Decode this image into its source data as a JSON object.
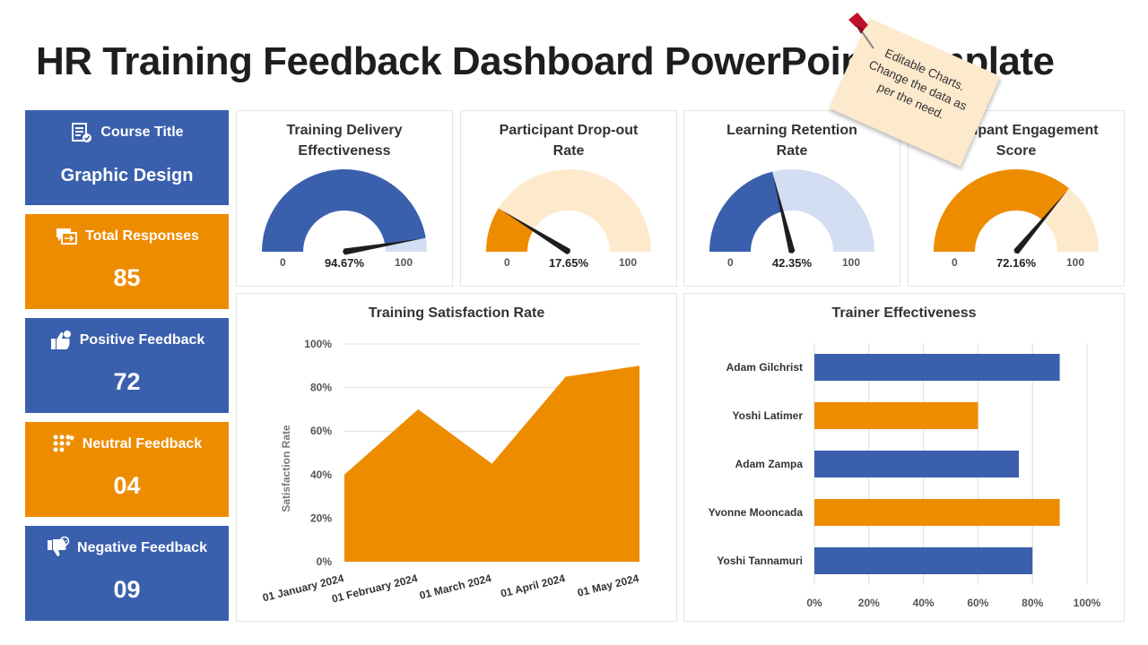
{
  "title": "HR Training Feedback Dashboard PowerPoint Template",
  "note": {
    "line1": "Editable Charts.",
    "line2": "Change the data as",
    "line3": "per the  need."
  },
  "kpis": [
    {
      "label": "Course Title",
      "value": "Graphic Design",
      "color": "#3a5fad",
      "icon": "document-check-icon"
    },
    {
      "label": "Total Responses",
      "value": "85",
      "color": "#ee8c00",
      "icon": "chat-arrow-icon"
    },
    {
      "label": "Positive Feedback",
      "value": "72",
      "color": "#3a5fad",
      "icon": "thumbs-up-icon"
    },
    {
      "label": "Neutral Feedback",
      "value": "04",
      "color": "#ee8c00",
      "icon": "star-dots-icon"
    },
    {
      "label": "Negative Feedback",
      "value": "09",
      "color": "#3a5fad",
      "icon": "thumbs-down-icon"
    }
  ],
  "chart_data": [
    {
      "type": "gauge",
      "title": "Training Delivery Effectiveness",
      "value": 94.67,
      "value_label": "94.67%",
      "min_label": "0",
      "max_label": "100",
      "color": "#3a5fad",
      "track_color": "#d3def2"
    },
    {
      "type": "gauge",
      "title": "Participant Drop-out Rate",
      "value": 17.65,
      "value_label": "17.65%",
      "min_label": "0",
      "max_label": "100",
      "color": "#ee8c00",
      "track_color": "#fde9cc"
    },
    {
      "type": "gauge",
      "title": "Learning Retention Rate",
      "value": 42.35,
      "value_label": "42.35%",
      "min_label": "0",
      "max_label": "100",
      "color": "#3a5fad",
      "track_color": "#d3def2"
    },
    {
      "type": "gauge",
      "title": "Participant Engagement Score",
      "value": 72.16,
      "value_label": "72.16%",
      "min_label": "0",
      "max_label": "100",
      "color": "#ee8c00",
      "track_color": "#fde9cc"
    },
    {
      "type": "area",
      "title": "Training Satisfaction Rate",
      "ylabel": "Satisfaction Rate",
      "x": [
        "01 January 2024",
        "01 February 2024",
        "01 March 2024",
        "01 April 2024",
        "01 May 2024"
      ],
      "values": [
        40,
        70,
        45,
        85,
        90
      ],
      "ylim": [
        0,
        100
      ],
      "yticks": [
        "0%",
        "20%",
        "40%",
        "60%",
        "80%",
        "100%"
      ],
      "color": "#ee8c00"
    },
    {
      "type": "bar",
      "orientation": "horizontal",
      "title": "Trainer Effectiveness",
      "categories": [
        "Adam Gilchrist",
        "Yoshi Latimer",
        "Adam Zampa",
        "Yvonne Mooncada",
        "Yoshi Tannamuri"
      ],
      "values": [
        90,
        60,
        75,
        90,
        80
      ],
      "xlim": [
        0,
        100
      ],
      "xticks": [
        "0%",
        "20%",
        "40%",
        "60%",
        "80%",
        "100%"
      ],
      "colors": [
        "#3a5fad",
        "#ee8c00",
        "#3a5fad",
        "#ee8c00",
        "#3a5fad"
      ]
    }
  ]
}
